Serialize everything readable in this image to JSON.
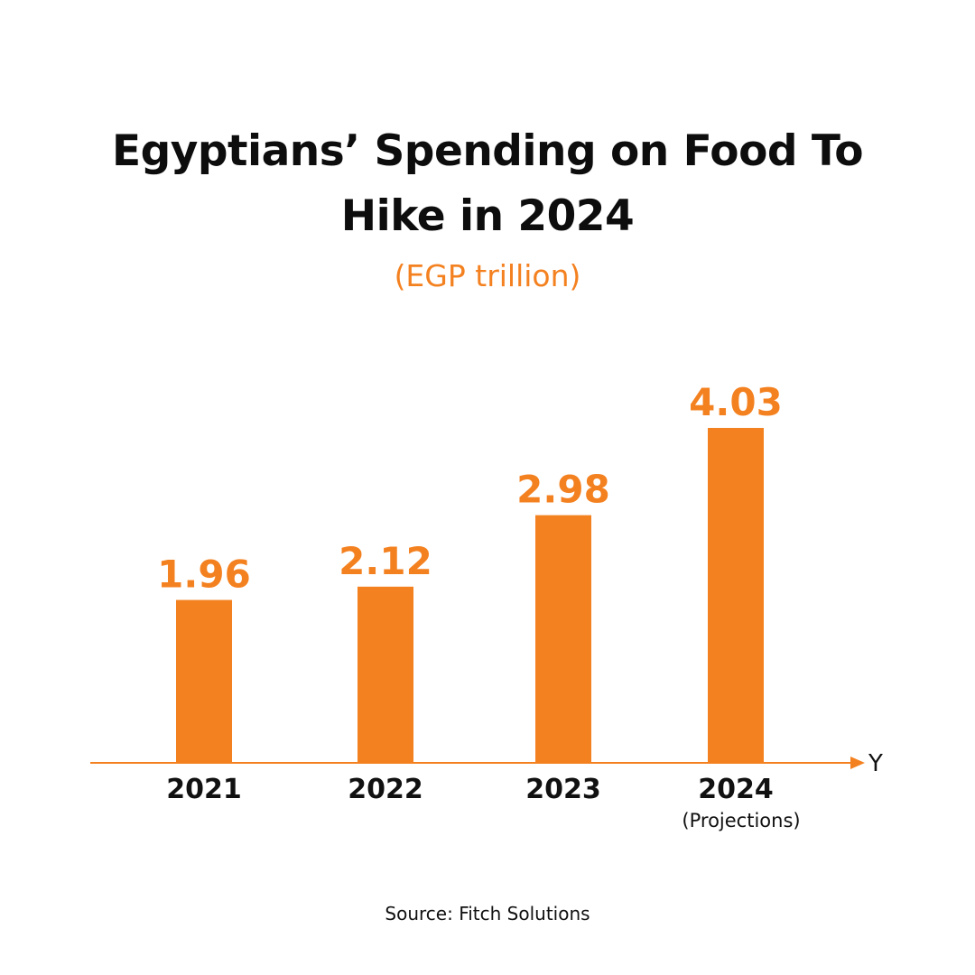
{
  "title_lines": [
    "Egyptians’ Spending on Food To",
    "Hike in 2024"
  ],
  "subtitle": "(EGP trillion)",
  "source": "Source: Fitch Solutions",
  "colors": {
    "bar": "#f48120",
    "value_label": "#f48120",
    "axis": "#f48120",
    "category_label": "#111111",
    "title": "#0d0d0d"
  },
  "chart_data": {
    "type": "bar",
    "title": "Egyptians’ Spending on Food To Hike in 2024",
    "subtitle": "(EGP trillion)",
    "categories": [
      "2021",
      "2022",
      "2023",
      "2024"
    ],
    "category_notes": [
      "",
      "",
      "",
      "(Projections)"
    ],
    "values": [
      1.96,
      2.12,
      2.98,
      4.03
    ],
    "value_labels": [
      "1.96",
      "2.12",
      "2.98",
      "4.03"
    ],
    "xlabel": "Y",
    "ylabel": "",
    "grid": false,
    "legend": "none"
  }
}
